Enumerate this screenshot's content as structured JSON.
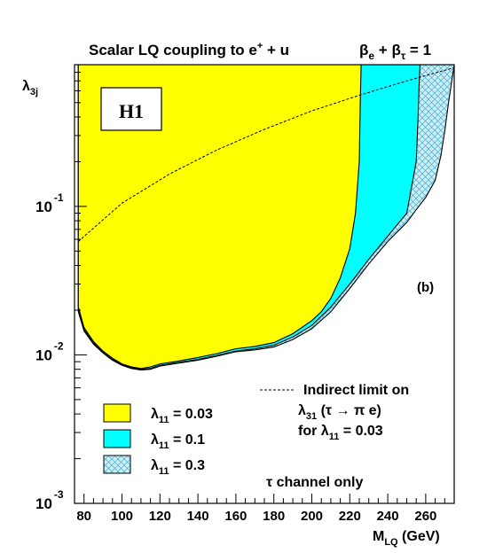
{
  "chart_data": {
    "type": "area",
    "title": "Scalar LQ coupling to e",
    "title_sup": "+",
    "title_tail": " + u",
    "condition": {
      "b1": "β",
      "b1_sub": "e",
      "plus": " + ",
      "b2": "β",
      "b2_sub": "τ",
      "tail": " = 1"
    },
    "experiment_label": "H1",
    "panel_label": "(b)",
    "note": "τ channel only",
    "xlabel": "M",
    "xlabel_sub": "LQ",
    "xlabel_unit": " (GeV)",
    "ylabel": "λ",
    "ylabel_sub": "3j",
    "xlim": [
      75,
      275
    ],
    "ylim": [
      0.001,
      0.9
    ],
    "y_scale": "log",
    "x_ticks": [
      "80",
      "100",
      "120",
      "140",
      "160",
      "180",
      "200",
      "220",
      "240",
      "260"
    ],
    "y_tick_labels": [
      {
        "base": "10",
        "exp": "-1",
        "value": 0.1
      },
      {
        "base": "10",
        "exp": "-2",
        "value": 0.01
      },
      {
        "base": "10",
        "exp": "-3",
        "value": 0.001
      }
    ],
    "series": [
      {
        "name": "λ₁₁ = 0.3",
        "sym": "λ",
        "sub": "11",
        "val": " = 0.3",
        "color": "#ccf0f8",
        "style": "hatched",
        "x": [
          77,
          80,
          85,
          90,
          95,
          100,
          105,
          110,
          115,
          120,
          130,
          140,
          150,
          160,
          170,
          180,
          190,
          200,
          210,
          220,
          230,
          240,
          250,
          255,
          260,
          265,
          268,
          270,
          272,
          275
        ],
        "y": [
          0.0195,
          0.0145,
          0.0118,
          0.0103,
          0.0092,
          0.0085,
          0.0081,
          0.0079,
          0.008,
          0.0084,
          0.0088,
          0.0092,
          0.0098,
          0.0105,
          0.0108,
          0.0113,
          0.0127,
          0.015,
          0.0195,
          0.028,
          0.041,
          0.058,
          0.078,
          0.095,
          0.115,
          0.15,
          0.22,
          0.32,
          0.5,
          0.9
        ]
      },
      {
        "name": "λ₁₁ = 0.1",
        "sym": "λ",
        "sub": "11",
        "val": " = 0.1",
        "color": "#00ffff",
        "style": "solid",
        "x": [
          77,
          80,
          85,
          90,
          95,
          100,
          105,
          110,
          115,
          120,
          130,
          140,
          150,
          160,
          170,
          180,
          190,
          200,
          210,
          220,
          230,
          240,
          250,
          255,
          256,
          256.5,
          257
        ],
        "y": [
          0.02,
          0.0148,
          0.012,
          0.0104,
          0.0093,
          0.0086,
          0.0082,
          0.008,
          0.0081,
          0.0085,
          0.0089,
          0.0093,
          0.0099,
          0.0106,
          0.011,
          0.0116,
          0.0132,
          0.0158,
          0.021,
          0.03,
          0.044,
          0.063,
          0.09,
          0.2,
          0.4,
          0.65,
          0.9
        ]
      },
      {
        "name": "λ₁₁ = 0.03",
        "sym": "λ",
        "sub": "11",
        "val": " = 0.03",
        "color": "#ffff00",
        "style": "solid",
        "x": [
          77,
          80,
          85,
          90,
          95,
          100,
          105,
          110,
          115,
          120,
          130,
          140,
          150,
          160,
          170,
          180,
          190,
          200,
          205,
          210,
          215,
          220,
          223,
          225,
          225.5,
          226
        ],
        "y": [
          0.021,
          0.0153,
          0.0123,
          0.0106,
          0.0095,
          0.0087,
          0.0083,
          0.0081,
          0.0083,
          0.0087,
          0.0091,
          0.0096,
          0.0102,
          0.011,
          0.0114,
          0.0121,
          0.0139,
          0.017,
          0.0195,
          0.024,
          0.033,
          0.052,
          0.09,
          0.2,
          0.5,
          0.9
        ]
      }
    ],
    "indirect_limit": {
      "style": "dashed",
      "label_line1": "Indirect limit on",
      "l2_sym": "λ",
      "l2_sub": "31",
      "l2_rest": " (τ → π e)",
      "l3_pre": "for ",
      "l3_sym": "λ",
      "l3_sub": "11",
      "l3_rest": " = 0.03",
      "x": [
        77,
        100,
        125,
        150,
        175,
        200,
        225,
        250,
        275
      ],
      "y": [
        0.058,
        0.105,
        0.165,
        0.24,
        0.33,
        0.44,
        0.56,
        0.7,
        0.86
      ]
    },
    "legend_position": "bottom-left"
  }
}
